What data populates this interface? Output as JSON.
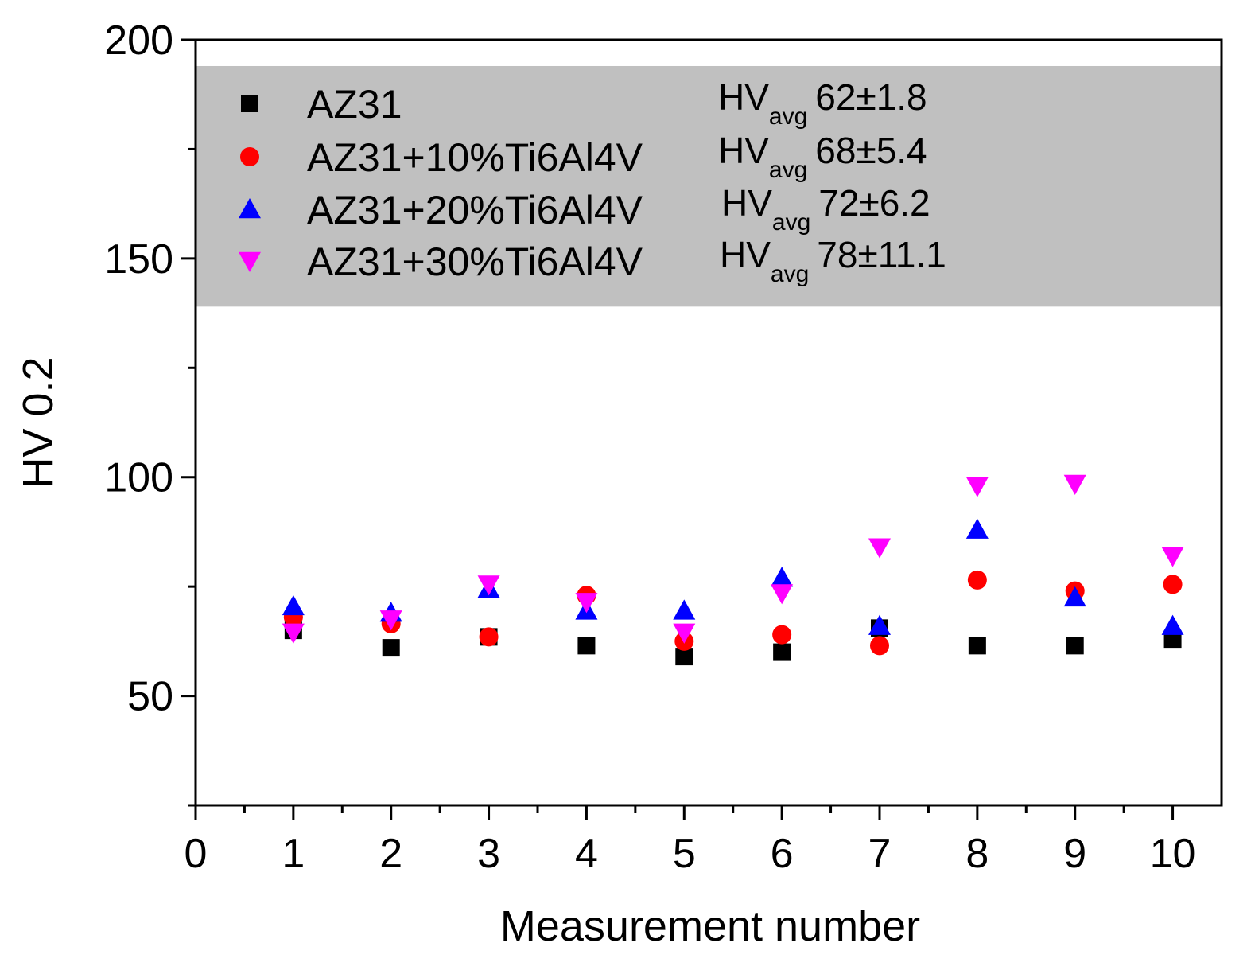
{
  "chart_data": {
    "type": "scatter",
    "title": "",
    "xlabel": "Measurement number",
    "ylabel": "HV 0.2",
    "xlim": [
      0,
      10.5
    ],
    "ylim": [
      25,
      200
    ],
    "xticks": [
      0,
      1,
      2,
      3,
      4,
      5,
      6,
      7,
      8,
      9,
      10
    ],
    "yticks": [
      50,
      100,
      150,
      200
    ],
    "legend_position": "top (inside shaded band)",
    "shaded_band": {
      "y_from": 139,
      "y_to": 194,
      "color": "#c0c0c0"
    },
    "series": [
      {
        "name": "AZ31",
        "marker": "square",
        "color": "#000000",
        "stat_main": "HV",
        "stat_sub": "avg",
        "stat_value": "62±1.8",
        "x": [
          1,
          2,
          3,
          4,
          5,
          6,
          7,
          8,
          9,
          10
        ],
        "y": [
          65,
          61,
          63.5,
          61.5,
          59,
          60,
          65.5,
          61.5,
          61.5,
          63
        ]
      },
      {
        "name": "AZ31+10%Ti6Al4V",
        "marker": "circle",
        "color": "#ff0000",
        "stat_main": "HV",
        "stat_sub": "avg",
        "stat_value": "68±5.4",
        "x": [
          1,
          2,
          3,
          4,
          5,
          6,
          7,
          8,
          9,
          10
        ],
        "y": [
          68,
          66.5,
          63.5,
          73,
          62.5,
          64,
          61.5,
          76.5,
          74,
          75.5
        ]
      },
      {
        "name": "AZ31+20%Ti6Al4V",
        "marker": "triangle-up",
        "color": "#0000ff",
        "stat_main": "HV",
        "stat_sub": "avg",
        "stat_value": "72±6.2",
        "x": [
          1,
          2,
          3,
          4,
          5,
          6,
          7,
          8,
          9,
          10
        ],
        "y": [
          70.5,
          69,
          74.5,
          69.5,
          69.5,
          77,
          66,
          88,
          72.5,
          66
        ]
      },
      {
        "name": "AZ31+30%Ti6Al4V",
        "marker": "triangle-down",
        "color": "#ff00ff",
        "stat_main": "HV",
        "stat_sub": "avg",
        "stat_value": "78±11.1",
        "x": [
          1,
          2,
          3,
          4,
          5,
          6,
          7,
          8,
          9,
          10
        ],
        "y": [
          64.5,
          67.5,
          75.5,
          71.5,
          64.5,
          73.5,
          84,
          98,
          98.5,
          82
        ]
      }
    ]
  }
}
